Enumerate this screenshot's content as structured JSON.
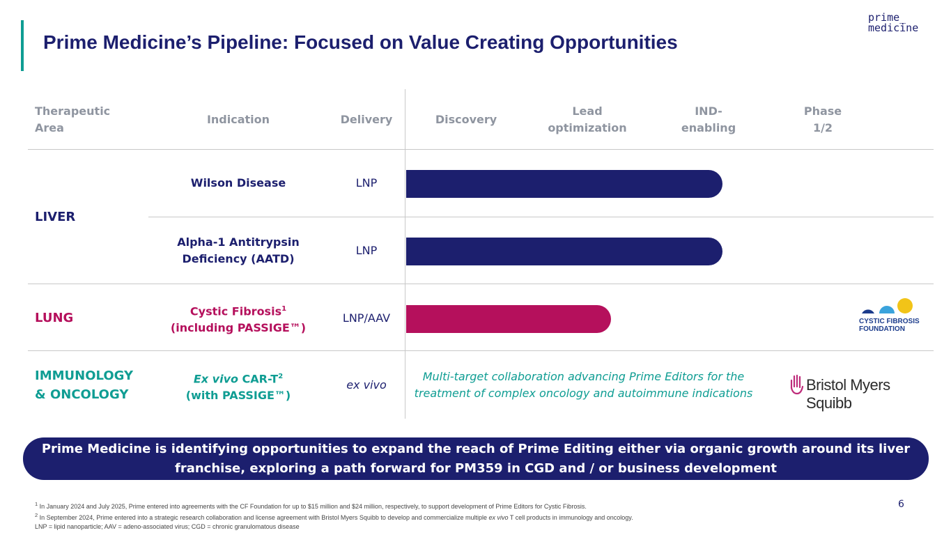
{
  "slide": {
    "title": "Prime Medicine’s Pipeline: Focused on Value Creating Opportunities",
    "logo_line1": "prime_",
    "logo_line2": "medicine",
    "page_number": "6"
  },
  "table": {
    "headers": {
      "area": [
        "Therapeutic",
        "Area"
      ],
      "indication": "Indication",
      "delivery": "Delivery",
      "stages": [
        {
          "line1": "Discovery",
          "line2": ""
        },
        {
          "line1": "Lead",
          "line2": "optimization"
        },
        {
          "line1": "IND-",
          "line2": "enabling"
        },
        {
          "line1": "Phase",
          "line2": "1/2"
        }
      ]
    },
    "areas": {
      "liver": "LIVER",
      "lung": "LUNG",
      "immuno": [
        "IMMUNOLOGY",
        "& ONCOLOGY"
      ]
    },
    "rows": [
      {
        "indication": [
          "Wilson Disease"
        ],
        "delivery": "LNP",
        "progress_stage": 2.7,
        "color": "#1c1f6e"
      },
      {
        "indication": [
          "Alpha-1 Antitrypsin",
          "Deficiency (AATD)"
        ],
        "delivery": "LNP",
        "progress_stage": 2.7,
        "color": "#1c1f6e"
      },
      {
        "indication_main": "Cystic Fibrosis",
        "indication_sup": "1",
        "indication_line2": "(including PASSIGE™)",
        "delivery": "LNP/AAV",
        "progress_stage": 1.75,
        "color": "#b5105c"
      },
      {
        "indication_italic": "Ex vivo",
        "indication_rest": " CAR-T",
        "indication_sup": "2",
        "indication_line2": "(with PASSIGE™)",
        "delivery": "ex vivo",
        "collab": [
          "Multi-target collaboration advancing Prime Editors for the",
          "treatment of complex oncology and autoimmune indications"
        ]
      }
    ]
  },
  "partners": {
    "cff": [
      "CYSTIC FIBROSIS",
      "FOUNDATION"
    ],
    "bms": "Bristol Myers Squibb"
  },
  "banner": {
    "line1": "Prime Medicine is identifying opportunities to expand the reach of Prime Editing either via organic growth around its liver",
    "line2": "franchise, exploring a path forward for PM359 in CGD and / or business development"
  },
  "footnotes": {
    "f1_sup": "1",
    "f1": " In January 2024 and July 2025, Prime entered into agreements with the CF Foundation for up to $15 million and $24 million, respectively, to support development of Prime Editors for Cystic Fibrosis.",
    "f2_sup": "2",
    "f2_a": " In September 2024, Prime entered into a strategic research collaboration and license agreement with Bristol Myers Squibb to develop and commercialize multiple ",
    "f2_italic": "ex vivo",
    "f2_b": " T cell products in immunology and oncology.",
    "f3": "LNP = lipid nanoparticle; AAV = adeno-associated virus; CGD = chronic granulomatous disease"
  },
  "colors": {
    "navy": "#1c1f6e",
    "teal": "#0f9d93",
    "magenta": "#b5105c",
    "gray_header": "#8f95a0"
  }
}
